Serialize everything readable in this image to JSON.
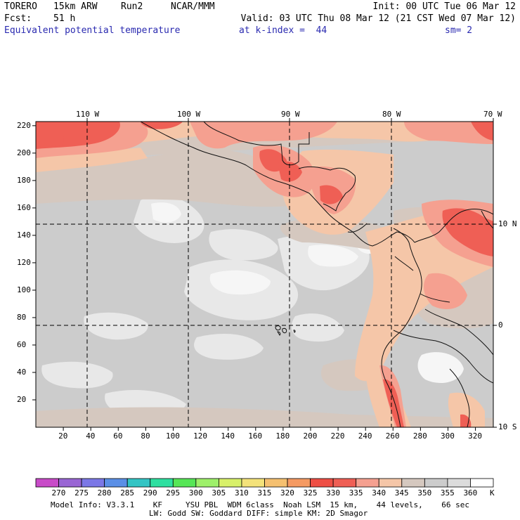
{
  "header": {
    "model": "TORERO",
    "resolution": "15km ARW",
    "run": "Run2",
    "org": "NCAR/MMM",
    "init": "Init: 00 UTC Tue 06 Mar 12",
    "fcst_label": "Fcst:",
    "fcst_value": "51 h",
    "valid": "Valid: 03 UTC Thu 08 Mar 12 (21 CST Wed 07 Mar 12)",
    "field": "Equivalent potential temperature",
    "level": "at k-index =  44",
    "smoothing": "sm= 2"
  },
  "map": {
    "top_longitudes": [
      "110 W",
      "100 W",
      "90 W",
      "80 W",
      "70 W"
    ],
    "right_latitudes": [
      "10 N",
      "0",
      "10 S"
    ],
    "y_ticks": [
      "220",
      "200",
      "180",
      "160",
      "140",
      "120",
      "100",
      "80",
      "60",
      "40",
      "20"
    ],
    "x_ticks": [
      "20",
      "40",
      "60",
      "80",
      "100",
      "120",
      "140",
      "160",
      "180",
      "200",
      "220",
      "240",
      "260",
      "280",
      "300",
      "320"
    ]
  },
  "colorbar": {
    "levels": [
      "270",
      "275",
      "280",
      "285",
      "290",
      "295",
      "300",
      "305",
      "310",
      "315",
      "320",
      "325",
      "330",
      "335",
      "340",
      "345",
      "350",
      "355",
      "360"
    ],
    "unit": "K",
    "colors": [
      "#c84bc8",
      "#9966d4",
      "#7b77e6",
      "#5b8fe6",
      "#33c4c4",
      "#2edfa0",
      "#56e656",
      "#9ef06a",
      "#d8f06a",
      "#f4e27a",
      "#f5c070",
      "#f59a62",
      "#ee4f45",
      "#ef5f55",
      "#f5a090",
      "#f5c6a8",
      "#d5c8bf",
      "#cccccc",
      "#dcdcdc",
      "#ffffff"
    ]
  },
  "footer": {
    "line1": "Model Info: V3.3.1    KF     YSU PBL  WDM 6class  Noah LSM  15 km,    44 levels,    66 sec",
    "line2": "LW: Godd SW: Goddard DIFF: simple KM: 2D Smagor"
  }
}
